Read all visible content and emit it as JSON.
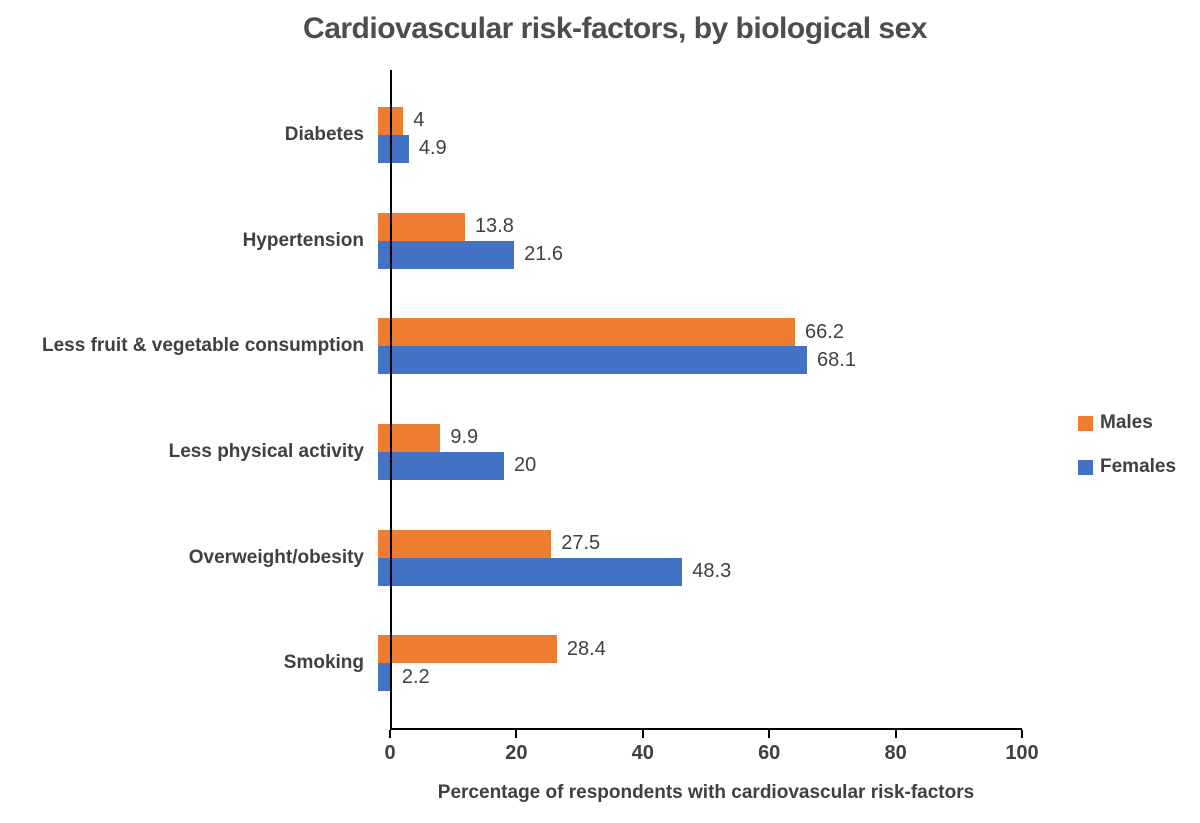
{
  "chart_data": {
    "type": "bar",
    "orientation": "horizontal",
    "title": "Cardiovascular risk-factors, by biological sex",
    "xlabel": "Percentage of respondents with cardiovascular risk-factors",
    "categories": [
      "Diabetes",
      "Hypertension",
      "Less fruit & vegetable consumption",
      "Less physical activity",
      "Overweight/obesity",
      "Smoking"
    ],
    "series": [
      {
        "name": "Males",
        "color": "#ED7D31",
        "values": [
          4,
          13.8,
          66.2,
          9.9,
          27.5,
          28.4
        ]
      },
      {
        "name": "Females",
        "color": "#4472C4",
        "values": [
          4.9,
          21.6,
          68.1,
          20,
          48.3,
          2.2
        ]
      }
    ],
    "xlim": [
      0,
      100
    ],
    "xticks": [
      0,
      20,
      40,
      60,
      80,
      100
    ],
    "legend": {
      "position": "right",
      "entries": [
        "Males",
        "Females"
      ]
    },
    "grid": false,
    "data_labels": true
  },
  "style": {
    "background": "#ffffff",
    "males_color": "#ED7D31",
    "females_color": "#4472C4",
    "axis_color": "#000000",
    "text_color": "#404040",
    "title_color": "#4d4d4d"
  }
}
